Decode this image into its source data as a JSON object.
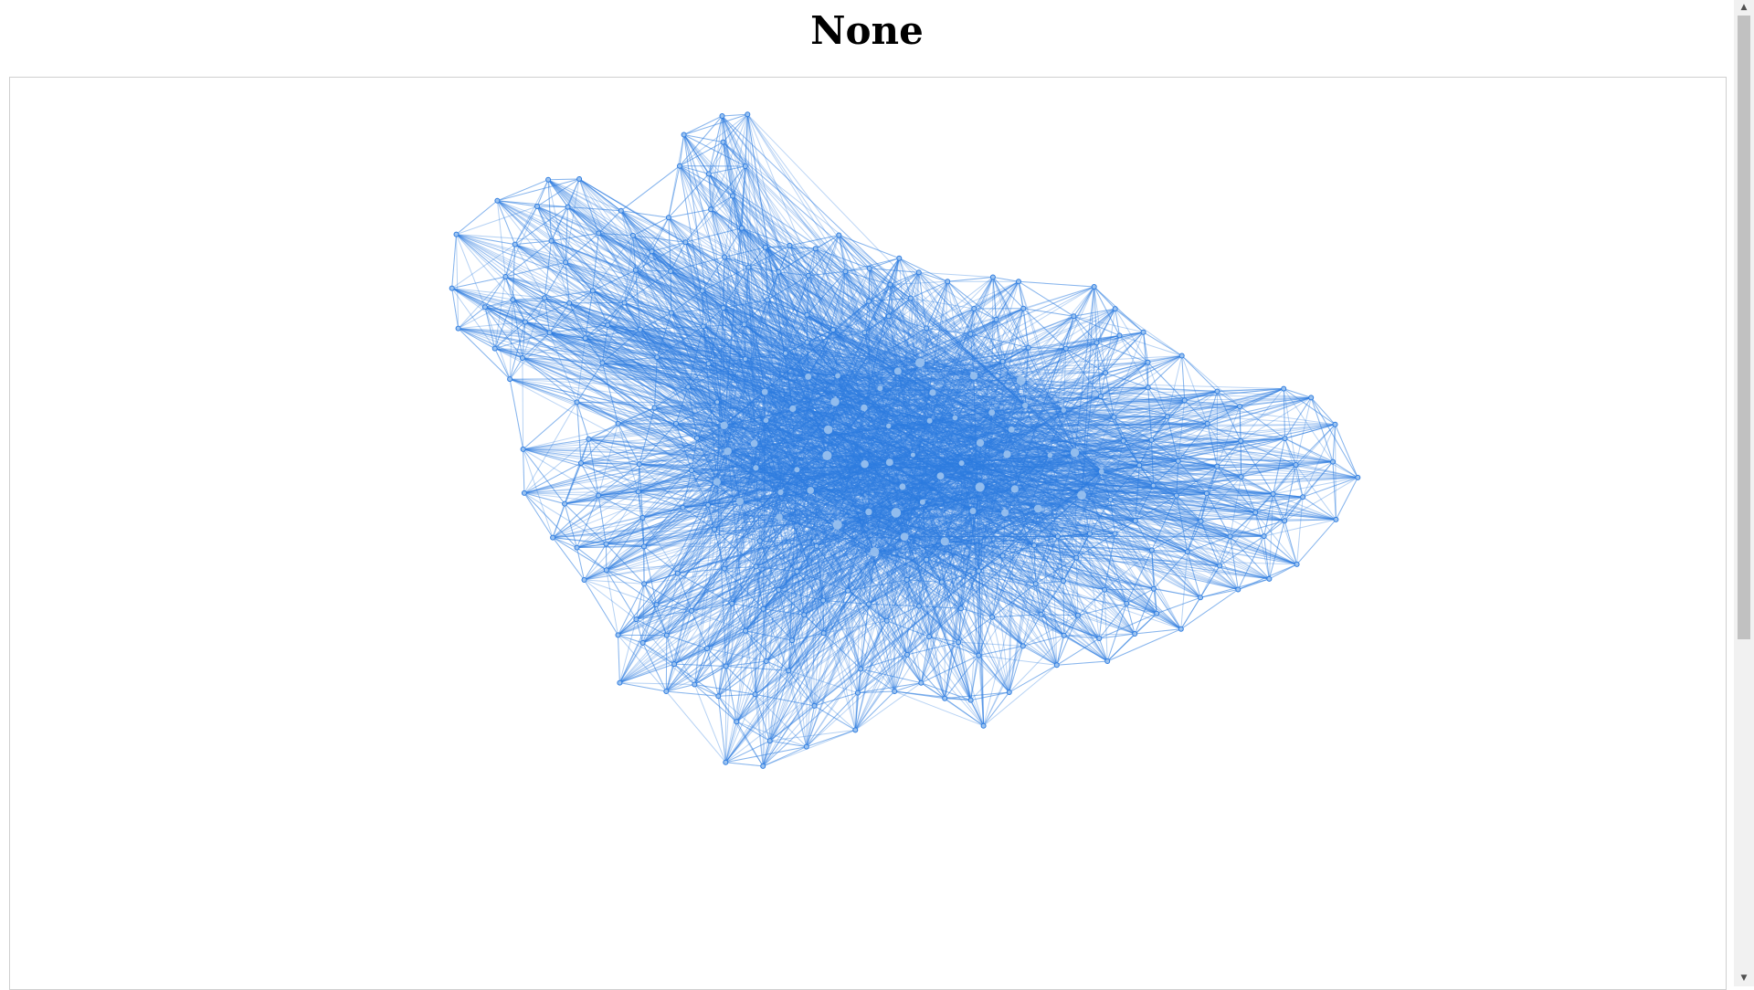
{
  "page": {
    "title": "None"
  },
  "graph": {
    "node_color": "#2f7de0",
    "edge_color": "#2f7de0",
    "inner_node_color": "#9cc3f0",
    "background": "#ffffff",
    "border_color": "#cfcfcf"
  },
  "scrollbar": {
    "up_icon": "scroll-up-arrow-icon",
    "down_icon": "scroll-down-arrow-icon",
    "up_glyph": "▲",
    "down_glyph": "▼"
  }
}
